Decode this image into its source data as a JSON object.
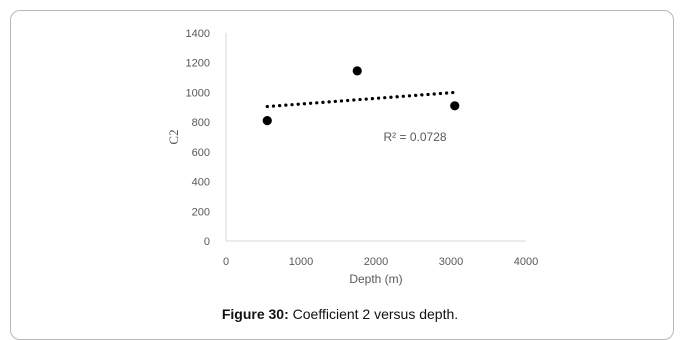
{
  "chart_data": {
    "type": "scatter",
    "title": "",
    "xlabel": "Depth (m)",
    "ylabel": "C2",
    "xlim": [
      0,
      4000
    ],
    "ylim": [
      0,
      1400
    ],
    "x_ticks": [
      0,
      1000,
      2000,
      3000,
      4000
    ],
    "y_ticks": [
      0,
      200,
      400,
      600,
      800,
      1000,
      1200,
      1400
    ],
    "grid": false,
    "legend": "none",
    "points": [
      {
        "x": 550,
        "y": 810
      },
      {
        "x": 1750,
        "y": 1145
      },
      {
        "x": 3050,
        "y": 910
      }
    ],
    "trendline": {
      "style": "dotted",
      "kind": "linear",
      "from": {
        "x": 550,
        "y": 905
      },
      "to": {
        "x": 3050,
        "y": 1000
      }
    },
    "annotations": [
      {
        "text": "R² = 0.0728",
        "x": 2100,
        "y": 700
      }
    ],
    "colors": {
      "marker": "#000000",
      "trendline": "#000000",
      "axis": "#d9d9d9",
      "text": "#595959"
    }
  },
  "caption": {
    "label": "Figure 30:",
    "text": " Coefficient 2 versus depth."
  }
}
